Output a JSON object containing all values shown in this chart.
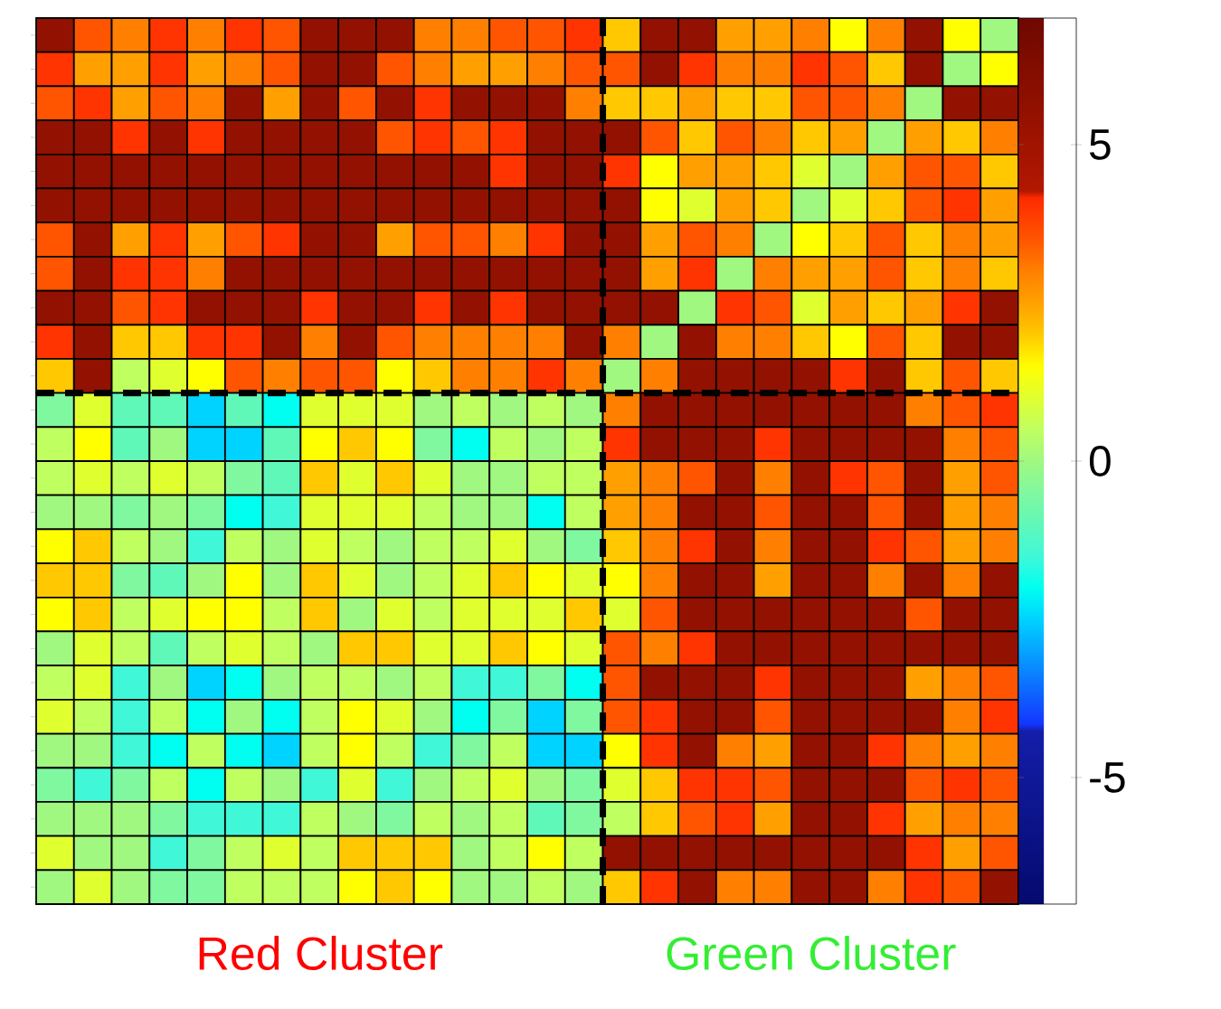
{
  "chart_data": {
    "type": "heatmap",
    "categories": [
      null,
      null,
      null,
      null,
      null,
      null,
      null,
      null,
      null,
      null,
      null,
      null,
      null,
      null,
      null,
      null,
      null,
      null,
      null,
      null,
      null,
      null,
      null,
      null,
      null,
      null
    ],
    "y_categories": [
      null,
      null,
      null,
      null,
      null,
      null,
      null,
      null,
      null,
      null,
      null,
      null,
      null,
      null,
      null,
      null,
      null,
      null,
      null,
      null,
      null,
      null,
      null,
      null,
      null,
      null
    ],
    "cells": [
      [
        5.5,
        3.5,
        3,
        4,
        3,
        4,
        3.5,
        5.5,
        5.5,
        5.5,
        3,
        3,
        3.5,
        3.5,
        4,
        2,
        5.5,
        5.5,
        2.5,
        2.5,
        3,
        1.5,
        3,
        5.5,
        1.5,
        0
      ],
      [
        4,
        2.5,
        2.5,
        4,
        2.5,
        3,
        3.5,
        5.5,
        5.5,
        3.5,
        3,
        2.5,
        2.5,
        3,
        3.5,
        3.5,
        5.5,
        4,
        3,
        3,
        4,
        3.5,
        2,
        5.5,
        0,
        1.5
      ],
      [
        3.5,
        4,
        2.5,
        3.5,
        3,
        5.5,
        2.5,
        5.5,
        3.5,
        5.5,
        4,
        5.5,
        5.5,
        5.5,
        3,
        2,
        2,
        2.5,
        2,
        2,
        3.5,
        3.5,
        3,
        0,
        5.5,
        5.5
      ],
      [
        5.5,
        5.5,
        4,
        5.5,
        4,
        5.5,
        5.5,
        5.5,
        5.5,
        3.5,
        4,
        3.5,
        4,
        5.5,
        5.5,
        5.5,
        3.5,
        2,
        3.5,
        3,
        2,
        2.5,
        0,
        2.5,
        2,
        3
      ],
      [
        5.5,
        5.5,
        5.5,
        5.5,
        5.5,
        5.5,
        5.5,
        5.5,
        5.5,
        5.5,
        5.5,
        5.5,
        4,
        5.5,
        5.5,
        4,
        1.5,
        2.5,
        2.5,
        2,
        1,
        0,
        2.5,
        3.5,
        3.5,
        2
      ],
      [
        5.5,
        5.5,
        5.5,
        5.5,
        5.5,
        5.5,
        5.5,
        5.5,
        5.5,
        5.5,
        5.5,
        5.5,
        5.5,
        5.5,
        5.5,
        5.5,
        1.5,
        1,
        2.5,
        2,
        0,
        1,
        2,
        3.5,
        4,
        2.5
      ],
      [
        3.5,
        5.5,
        2.5,
        4,
        2.5,
        3.5,
        4,
        5.5,
        5.5,
        2.5,
        3.5,
        3.5,
        3,
        4,
        5.5,
        5.5,
        2.5,
        3.5,
        3,
        0,
        1.5,
        2,
        3.5,
        2,
        3,
        2.5
      ],
      [
        3.5,
        5.5,
        4,
        4,
        3,
        5.5,
        5.5,
        5.5,
        5.5,
        5.5,
        5.5,
        5.5,
        5.5,
        5.5,
        5.5,
        5.5,
        2.5,
        4,
        0,
        3,
        2.5,
        2.5,
        3.5,
        2,
        3,
        2
      ],
      [
        5.5,
        5.5,
        3.5,
        4,
        5.5,
        5.5,
        5.5,
        4,
        5.5,
        5.5,
        4,
        5.5,
        4,
        5.5,
        5.5,
        5.5,
        5.5,
        0,
        4,
        3.5,
        1,
        2.5,
        2,
        2.5,
        4,
        5.5
      ],
      [
        4,
        5.5,
        2,
        2,
        4,
        4,
        5.5,
        3,
        5.5,
        3.5,
        3,
        3,
        3,
        3,
        5.5,
        3,
        0,
        5.5,
        3,
        3,
        2,
        1.5,
        3.5,
        2,
        5.5,
        5.5
      ],
      [
        2,
        5.5,
        0.5,
        1,
        1.5,
        3.5,
        3,
        3.5,
        3.5,
        1.5,
        2,
        3,
        3,
        4,
        3,
        0,
        3,
        5.5,
        5.5,
        5.5,
        5.5,
        4,
        5.5,
        2,
        3.5,
        2
      ],
      [
        -0.5,
        1,
        -1,
        -1,
        -2.5,
        -1,
        -2,
        1,
        1,
        1,
        0,
        0.5,
        0,
        0.5,
        0,
        3,
        5.5,
        5.5,
        5.5,
        5.5,
        5.5,
        5.5,
        5.5,
        3,
        3.5,
        4
      ],
      [
        0.5,
        1.5,
        -1,
        0,
        -2.5,
        -2.5,
        -1,
        1.5,
        2,
        1.5,
        -0.5,
        -2,
        0.5,
        0,
        0.5,
        4,
        5.5,
        5.5,
        5.5,
        4,
        5.5,
        5.5,
        5.5,
        5.5,
        3,
        3.5
      ],
      [
        0.5,
        1,
        0.5,
        1,
        0.5,
        -0.5,
        -1,
        2,
        1,
        2,
        1,
        0,
        0,
        0.5,
        0.5,
        2.5,
        3,
        3.5,
        5.5,
        3,
        5.5,
        4,
        3.5,
        5.5,
        2.5,
        3.5
      ],
      [
        0,
        0,
        -0.5,
        0,
        -0.5,
        -2,
        -1.5,
        1,
        1,
        1,
        0.5,
        0,
        0,
        -2,
        0.5,
        2.5,
        3,
        5.5,
        5.5,
        3.5,
        5.5,
        5.5,
        3.5,
        5.5,
        2.5,
        3
      ],
      [
        1.5,
        2,
        0.5,
        0,
        -1.5,
        0.5,
        0,
        1,
        0.5,
        0,
        0.5,
        0.5,
        1,
        0,
        -0.5,
        2,
        3,
        4,
        5.5,
        3,
        5.5,
        5.5,
        4,
        3.5,
        2.5,
        3
      ],
      [
        2,
        2,
        -0.5,
        -1,
        0,
        1.5,
        0,
        2,
        1,
        0,
        0.5,
        1,
        2,
        1.5,
        1,
        1.5,
        3,
        5.5,
        5.5,
        2.5,
        5.5,
        5.5,
        3,
        5.5,
        3,
        5.5
      ],
      [
        1.5,
        2,
        0.5,
        1,
        1.5,
        1.5,
        0.5,
        2,
        0,
        1,
        0.5,
        1,
        1,
        1,
        2,
        1,
        3.5,
        5.5,
        5.5,
        5.5,
        5.5,
        5.5,
        5.5,
        3.5,
        5.5,
        5.5
      ],
      [
        0,
        1,
        0.5,
        -1,
        0.5,
        1,
        0.5,
        0,
        2,
        2,
        1,
        1,
        2,
        1.5,
        1,
        3.5,
        3,
        4,
        5.5,
        5.5,
        5.5,
        5.5,
        5.5,
        5.5,
        5.5,
        5.5
      ],
      [
        0.5,
        1,
        -1.5,
        0,
        -2.5,
        -2,
        0,
        0.5,
        0.5,
        0,
        0.5,
        -1.5,
        -1.5,
        -0.5,
        -2,
        3.5,
        5.5,
        5.5,
        5.5,
        4,
        5.5,
        5.5,
        5.5,
        2.5,
        3,
        3.5
      ],
      [
        1,
        0.5,
        -1.5,
        0.5,
        -2,
        0,
        -2,
        0.5,
        1.5,
        1,
        0,
        -2,
        -0.5,
        -2.5,
        -0.5,
        3.5,
        4,
        5.5,
        5.5,
        3.5,
        5.5,
        5.5,
        5.5,
        5.5,
        3,
        4
      ],
      [
        0,
        0,
        -1.5,
        -2,
        0.5,
        -2,
        -2.5,
        0.5,
        1.5,
        0.5,
        -1.5,
        -0.5,
        0.5,
        -2.5,
        -2.5,
        1.5,
        4,
        5.5,
        3,
        2.5,
        5.5,
        5.5,
        4,
        3,
        2.5,
        3
      ],
      [
        -0.5,
        -1.5,
        -0.5,
        0.5,
        -2,
        0.5,
        0,
        -1.5,
        1,
        -1.5,
        0,
        0.5,
        1,
        0,
        -0.5,
        1,
        2,
        4,
        4,
        3.5,
        5.5,
        5.5,
        5.5,
        3.5,
        4,
        3.5
      ],
      [
        0,
        0,
        0,
        -0.5,
        -1.5,
        -1.5,
        -1.5,
        0.5,
        0,
        -0.5,
        0.5,
        0,
        0.5,
        -1,
        -0.5,
        0.5,
        2,
        3.5,
        4,
        2.5,
        5.5,
        5.5,
        4,
        2.5,
        3,
        3
      ],
      [
        1,
        0,
        0,
        -1.5,
        -0.5,
        0.5,
        1,
        0.5,
        2,
        2,
        2,
        0,
        0.5,
        1.5,
        0.5,
        5.5,
        5.5,
        5.5,
        5.5,
        5.5,
        5.5,
        5.5,
        5.5,
        4,
        2.5,
        3.5
      ],
      [
        0,
        1,
        0,
        -0.5,
        -0.5,
        0.5,
        0.5,
        0.5,
        1.5,
        2,
        1.5,
        0,
        0,
        0.5,
        0,
        2,
        4,
        5.5,
        3,
        3,
        5.5,
        5.5,
        3,
        4,
        3.5,
        5.5
      ]
    ],
    "clim": [
      -7,
      7
    ],
    "cticks": [
      -5,
      0,
      5
    ],
    "annotations": [
      "Red Cluster",
      "Green Cluster"
    ]
  }
}
